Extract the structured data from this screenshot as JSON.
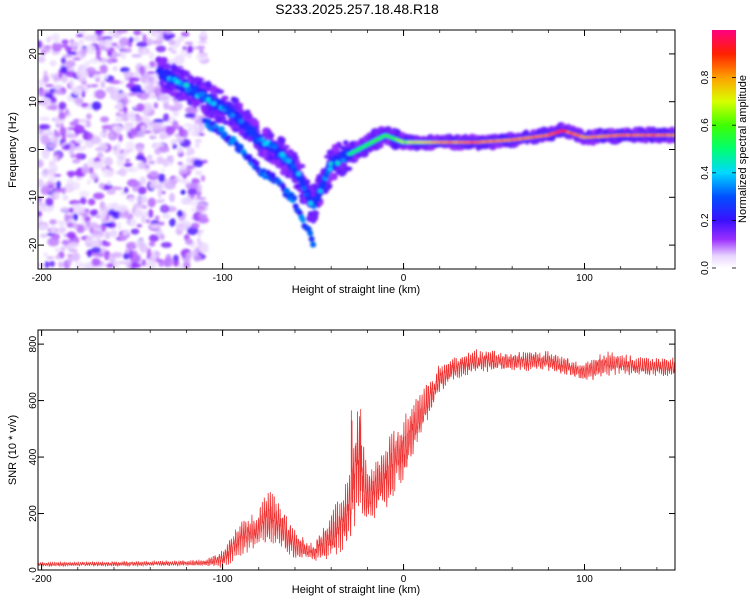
{
  "title": "S233.2025.257.18.48.R18",
  "chart_data": [
    {
      "type": "heatmap",
      "xlabel": "Height of straight line (km)",
      "ylabel": "Frequency (Hz)",
      "xlim": [
        -202,
        150
      ],
      "ylim": [
        -25,
        25
      ],
      "xticks": [
        -200,
        -100,
        0,
        100
      ],
      "yticks": [
        20,
        10,
        0,
        -10,
        -20
      ],
      "colorbar": {
        "label": "Normalized spectral amplitude",
        "range": [
          0,
          1
        ],
        "ticks": [
          "0.0",
          "0.2",
          "0.4",
          "0.6",
          "0.8"
        ],
        "tick_values": [
          0.0,
          0.2,
          0.4,
          0.6,
          0.8
        ]
      },
      "ridge": {
        "description_points": [
          {
            "x": -130,
            "freq": 15,
            "amp": 0.3
          },
          {
            "x": -115,
            "freq": 12,
            "amp": 0.35
          },
          {
            "x": -100,
            "freq": 9,
            "amp": 0.4
          },
          {
            "x": -90,
            "freq": 6,
            "amp": 0.45
          },
          {
            "x": -80,
            "freq": 2,
            "amp": 0.4
          },
          {
            "x": -70,
            "freq": 0,
            "amp": 0.45
          },
          {
            "x": -60,
            "freq": -4,
            "amp": 0.35
          },
          {
            "x": -50,
            "freq": -12,
            "amp": 0.3
          },
          {
            "x": -40,
            "freq": -3,
            "amp": 0.4
          },
          {
            "x": -30,
            "freq": -1,
            "amp": 0.5
          },
          {
            "x": -20,
            "freq": 1,
            "amp": 0.55
          },
          {
            "x": -10,
            "freq": 3,
            "amp": 0.55
          },
          {
            "x": 0,
            "freq": 1.5,
            "amp": 0.65
          },
          {
            "x": 20,
            "freq": 1.5,
            "amp": 0.8
          },
          {
            "x": 40,
            "freq": 1.5,
            "amp": 0.85
          },
          {
            "x": 60,
            "freq": 2,
            "amp": 0.8
          },
          {
            "x": 80,
            "freq": 3,
            "amp": 0.85
          },
          {
            "x": 88,
            "freq": 4,
            "amp": 0.9
          },
          {
            "x": 100,
            "freq": 2.5,
            "amp": 0.8
          },
          {
            "x": 120,
            "freq": 3,
            "amp": 0.85
          },
          {
            "x": 150,
            "freq": 3,
            "amp": 0.85
          }
        ]
      }
    },
    {
      "type": "line",
      "xlabel": "Height of straight line (km)",
      "ylabel": "SNR (10 * v/v)",
      "xlim": [
        -202,
        150
      ],
      "ylim": [
        0,
        850
      ],
      "xticks": [
        -200,
        -100,
        0,
        100
      ],
      "yticks": [
        0,
        200,
        400,
        600,
        800
      ],
      "color": "#ee3333",
      "envelope": {
        "x": [
          -202,
          -150,
          -110,
          -100,
          -90,
          -80,
          -75,
          -70,
          -60,
          -50,
          -40,
          -30,
          -25,
          -20,
          -10,
          0,
          10,
          20,
          30,
          40,
          60,
          80,
          90,
          100,
          110,
          120,
          130,
          150
        ],
        "mean": [
          20,
          22,
          25,
          40,
          110,
          150,
          200,
          170,
          90,
          60,
          120,
          210,
          400,
          260,
          330,
          430,
          560,
          680,
          720,
          740,
          740,
          740,
          720,
          700,
          730,
          730,
          720,
          720
        ],
        "spread": [
          8,
          10,
          12,
          40,
          80,
          80,
          120,
          100,
          60,
          40,
          100,
          160,
          240,
          120,
          140,
          150,
          90,
          60,
          50,
          50,
          40,
          45,
          40,
          40,
          60,
          45,
          40,
          40
        ]
      }
    }
  ]
}
